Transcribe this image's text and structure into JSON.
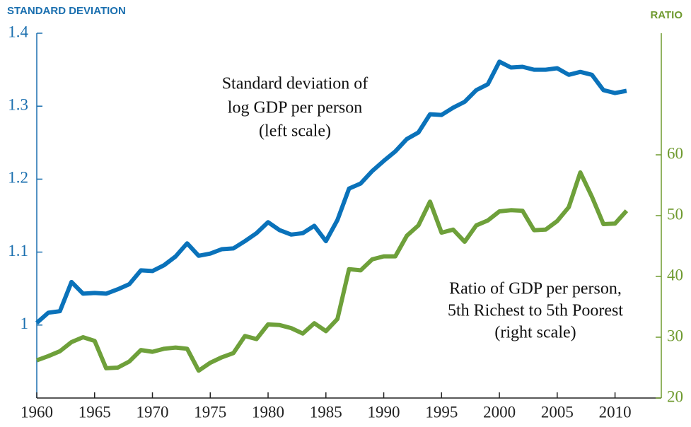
{
  "chart_data": {
    "type": "line",
    "y_label": "STANDARD DEVIATION",
    "y2_label": "RATIO",
    "annotations": [
      {
        "lines": [
          "Standard deviation of",
          "log GDP per person",
          "(left scale)"
        ]
      },
      {
        "lines": [
          "Ratio of GDP per person,",
          "5th Richest to 5th Poorest",
          "(right scale)"
        ]
      }
    ],
    "x": [
      1960,
      1961,
      1962,
      1963,
      1964,
      1965,
      1966,
      1967,
      1968,
      1969,
      1970,
      1971,
      1972,
      1973,
      1974,
      1975,
      1976,
      1977,
      1978,
      1979,
      1980,
      1981,
      1982,
      1983,
      1984,
      1985,
      1986,
      1987,
      1988,
      1989,
      1990,
      1991,
      1992,
      1993,
      1994,
      1995,
      1996,
      1997,
      1998,
      1999,
      2000,
      2001,
      2002,
      2003,
      2004,
      2005,
      2006,
      2007,
      2008,
      2009,
      2010,
      2011
    ],
    "series": [
      {
        "color": "#0a72ba",
        "axis": "y",
        "values": [
          1.003,
          1.017,
          1.019,
          1.059,
          1.043,
          1.044,
          1.043,
          1.049,
          1.056,
          1.075,
          1.074,
          1.082,
          1.094,
          1.112,
          1.095,
          1.098,
          1.104,
          1.105,
          1.115,
          1.126,
          1.141,
          1.13,
          1.124,
          1.126,
          1.136,
          1.115,
          1.144,
          1.187,
          1.194,
          1.211,
          1.225,
          1.238,
          1.255,
          1.264,
          1.289,
          1.288,
          1.298,
          1.306,
          1.322,
          1.33,
          1.361,
          1.353,
          1.354,
          1.35,
          1.35,
          1.352,
          1.343,
          1.347,
          1.343,
          1.322,
          1.318,
          1.321
        ]
      },
      {
        "color": "#6ea03a",
        "axis": "y2",
        "values": [
          26.2,
          26.9,
          27.7,
          29.2,
          30.0,
          29.4,
          24.9,
          25.0,
          26.0,
          27.9,
          27.6,
          28.1,
          28.3,
          28.1,
          24.5,
          25.8,
          26.7,
          27.4,
          30.2,
          29.7,
          32.1,
          32.0,
          31.5,
          30.6,
          32.3,
          31.0,
          33.0,
          41.2,
          41.0,
          42.8,
          43.3,
          43.3,
          46.7,
          48.4,
          52.3,
          47.2,
          47.7,
          45.7,
          48.4,
          49.2,
          50.7,
          50.9,
          50.8,
          47.6,
          47.7,
          49.1,
          51.4,
          57.1,
          53.1,
          48.6,
          48.7,
          50.8
        ]
      }
    ],
    "xlim": [
      1960,
      2014
    ],
    "xticks": [
      1960,
      1965,
      1970,
      1975,
      1980,
      1985,
      1990,
      1995,
      2000,
      2005,
      2010
    ],
    "ylim": [
      0.9,
      1.4
    ],
    "yticks": [
      1,
      1.1,
      1.2,
      1.3,
      1.4
    ],
    "y2lim": [
      20,
      80
    ],
    "y2ticks": [
      20,
      30,
      40,
      50,
      60
    ],
    "ycolor": "#1a6faf",
    "y2color": "#6f9a2f"
  }
}
